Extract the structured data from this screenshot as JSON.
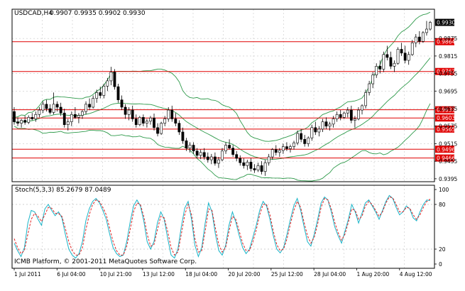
{
  "colors": {
    "background": "#ffffff",
    "grid": "#c8c8c8",
    "bullCandle": "#ffffff",
    "bearCandle": "#000000",
    "candleOutline": "#000000",
    "bollinger": "#2e9a4a",
    "levelLine": "#e00000",
    "stochMain": "#18b4c8",
    "stochSignal": "#e02020",
    "priceTag": "#000000",
    "levelTag": "#e00000"
  },
  "main_header": {
    "symbol_timeframe": "USDCAD,H4",
    "ohlc": "0.9907 0.9935 0.9902 0.9930"
  },
  "current_price_tag": "0.9930",
  "price_axis": {
    "min": 0.9385,
    "max": 0.9975,
    "ticks": [
      "0.9875",
      "0.9815",
      "0.9755",
      "0.9695",
      "0.9635",
      "0.9575",
      "0.9515",
      "0.9455",
      "0.9395"
    ]
  },
  "levels": [
    {
      "label": "0.9864",
      "value": 0.9864
    },
    {
      "label": "0.9762",
      "value": 0.9762
    },
    {
      "label": "0.9631",
      "value": 0.9631
    },
    {
      "label": "0.9603",
      "value": 0.9603
    },
    {
      "label": "0.9565",
      "value": 0.9565
    },
    {
      "label": "0.9496",
      "value": 0.9496
    },
    {
      "label": "0.9466",
      "value": 0.9466
    }
  ],
  "time_axis": {
    "labels": [
      "1 Jul 2011",
      "6 Jul 04:00",
      "10 Jul 21:00",
      "13 Jul 12:00",
      "18 Jul 04:00",
      "20 Jul 20:00",
      "25 Jul 12:00",
      "28 Jul 04:00",
      "1 Aug 20:00",
      "4 Aug 12:00"
    ]
  },
  "stoch": {
    "label": "Stoch(5,3,3) 85.2679 87.0489",
    "ticks": [
      "100",
      "80",
      "20",
      "0"
    ],
    "main": [
      28,
      18,
      10,
      22,
      55,
      72,
      70,
      60,
      52,
      74,
      80,
      72,
      65,
      70,
      62,
      40,
      20,
      12,
      8,
      14,
      30,
      58,
      74,
      84,
      88,
      82,
      72,
      60,
      40,
      22,
      14,
      10,
      12,
      30,
      56,
      78,
      86,
      78,
      58,
      30,
      20,
      30,
      55,
      70,
      60,
      35,
      12,
      8,
      20,
      50,
      75,
      84,
      60,
      25,
      10,
      22,
      55,
      82,
      70,
      40,
      18,
      12,
      25,
      52,
      70,
      56,
      38,
      22,
      14,
      20,
      36,
      52,
      72,
      84,
      78,
      60,
      38,
      20,
      15,
      22,
      40,
      60,
      78,
      88,
      72,
      50,
      30,
      24,
      40,
      60,
      82,
      90,
      86,
      70,
      50,
      38,
      28,
      44,
      60,
      80,
      70,
      55,
      68,
      82,
      86,
      78,
      70,
      60,
      72,
      84,
      92,
      88,
      76,
      66,
      70,
      78,
      74,
      62,
      58,
      70,
      80,
      86,
      85
    ],
    "signal": [
      34,
      22,
      14,
      18,
      40,
      60,
      68,
      64,
      57,
      66,
      76,
      75,
      68,
      68,
      64,
      48,
      30,
      18,
      12,
      12,
      22,
      46,
      66,
      80,
      86,
      84,
      76,
      66,
      48,
      30,
      18,
      12,
      12,
      24,
      46,
      70,
      82,
      80,
      64,
      40,
      24,
      26,
      46,
      64,
      62,
      44,
      22,
      12,
      16,
      40,
      66,
      80,
      66,
      34,
      16,
      18,
      44,
      74,
      72,
      48,
      26,
      16,
      22,
      44,
      64,
      60,
      44,
      28,
      18,
      18,
      30,
      46,
      66,
      80,
      80,
      66,
      44,
      26,
      18,
      20,
      34,
      54,
      72,
      84,
      76,
      56,
      38,
      28,
      36,
      54,
      76,
      88,
      86,
      74,
      56,
      42,
      32,
      40,
      56,
      74,
      72,
      60,
      64,
      78,
      84,
      80,
      72,
      64,
      70,
      82,
      90,
      89,
      80,
      70,
      70,
      76,
      75,
      66,
      60,
      66,
      76,
      84,
      87
    ]
  },
  "chart_data": {
    "type": "candlestick",
    "title": "USDCAD,H4",
    "candles": [
      [
        0.9625,
        0.964,
        0.958,
        0.959
      ],
      [
        0.959,
        0.9605,
        0.9575,
        0.9585
      ],
      [
        0.9585,
        0.96,
        0.957,
        0.9595
      ],
      [
        0.9595,
        0.961,
        0.958,
        0.9588
      ],
      [
        0.9588,
        0.9612,
        0.9582,
        0.9605
      ],
      [
        0.9605,
        0.962,
        0.9595,
        0.96
      ],
      [
        0.96,
        0.9625,
        0.959,
        0.9615
      ],
      [
        0.9615,
        0.964,
        0.9605,
        0.963
      ],
      [
        0.963,
        0.966,
        0.962,
        0.965
      ],
      [
        0.965,
        0.9665,
        0.9625,
        0.9635
      ],
      [
        0.9635,
        0.965,
        0.9615,
        0.9622
      ],
      [
        0.9622,
        0.969,
        0.9615,
        0.965
      ],
      [
        0.965,
        0.966,
        0.9625,
        0.964
      ],
      [
        0.964,
        0.9655,
        0.961,
        0.962
      ],
      [
        0.962,
        0.9635,
        0.957,
        0.958
      ],
      [
        0.958,
        0.96,
        0.956,
        0.959
      ],
      [
        0.959,
        0.9625,
        0.9575,
        0.9615
      ],
      [
        0.9615,
        0.964,
        0.96,
        0.9605
      ],
      [
        0.9605,
        0.962,
        0.9585,
        0.9612
      ],
      [
        0.9612,
        0.963,
        0.96,
        0.9625
      ],
      [
        0.9625,
        0.966,
        0.9615,
        0.965
      ],
      [
        0.965,
        0.967,
        0.963,
        0.964
      ],
      [
        0.964,
        0.968,
        0.9635,
        0.967
      ],
      [
        0.967,
        0.97,
        0.9655,
        0.969
      ],
      [
        0.969,
        0.971,
        0.967,
        0.968
      ],
      [
        0.968,
        0.972,
        0.967,
        0.9712
      ],
      [
        0.9712,
        0.974,
        0.9695,
        0.973
      ],
      [
        0.973,
        0.9778,
        0.9715,
        0.976
      ],
      [
        0.976,
        0.977,
        0.97,
        0.971
      ],
      [
        0.971,
        0.972,
        0.9655,
        0.9665
      ],
      [
        0.9665,
        0.968,
        0.963,
        0.964
      ],
      [
        0.964,
        0.965,
        0.96,
        0.9615
      ],
      [
        0.9615,
        0.964,
        0.9595,
        0.963
      ],
      [
        0.963,
        0.9645,
        0.959,
        0.96
      ],
      [
        0.96,
        0.9615,
        0.957,
        0.958
      ],
      [
        0.958,
        0.961,
        0.9575,
        0.9605
      ],
      [
        0.9605,
        0.9615,
        0.9575,
        0.9585
      ],
      [
        0.9585,
        0.96,
        0.957,
        0.9592
      ],
      [
        0.9592,
        0.961,
        0.958,
        0.9603
      ],
      [
        0.9603,
        0.9618,
        0.956,
        0.957
      ],
      [
        0.957,
        0.9585,
        0.954,
        0.955
      ],
      [
        0.955,
        0.959,
        0.9545,
        0.9585
      ],
      [
        0.9585,
        0.961,
        0.9575,
        0.96
      ],
      [
        0.96,
        0.964,
        0.959,
        0.963
      ],
      [
        0.963,
        0.9645,
        0.959,
        0.96
      ],
      [
        0.96,
        0.962,
        0.9575,
        0.9585
      ],
      [
        0.9585,
        0.9595,
        0.9545,
        0.9555
      ],
      [
        0.9555,
        0.957,
        0.9515,
        0.9525
      ],
      [
        0.9525,
        0.9535,
        0.949,
        0.95
      ],
      [
        0.95,
        0.952,
        0.9485,
        0.951
      ],
      [
        0.951,
        0.952,
        0.948,
        0.949
      ],
      [
        0.949,
        0.95,
        0.9465,
        0.9475
      ],
      [
        0.9475,
        0.9495,
        0.9462,
        0.9485
      ],
      [
        0.9485,
        0.95,
        0.946,
        0.947
      ],
      [
        0.947,
        0.9485,
        0.945,
        0.946
      ],
      [
        0.946,
        0.948,
        0.9445,
        0.947
      ],
      [
        0.947,
        0.9485,
        0.944,
        0.9448
      ],
      [
        0.9448,
        0.947,
        0.9432,
        0.946
      ],
      [
        0.946,
        0.95,
        0.9455,
        0.949
      ],
      [
        0.949,
        0.952,
        0.948,
        0.951
      ],
      [
        0.951,
        0.953,
        0.9495,
        0.95
      ],
      [
        0.95,
        0.951,
        0.947,
        0.9478
      ],
      [
        0.9478,
        0.949,
        0.9455,
        0.9465
      ],
      [
        0.9465,
        0.9475,
        0.944,
        0.945
      ],
      [
        0.945,
        0.9465,
        0.943,
        0.944
      ],
      [
        0.944,
        0.946,
        0.9425,
        0.9452
      ],
      [
        0.9452,
        0.9465,
        0.942,
        0.943
      ],
      [
        0.943,
        0.9445,
        0.9415,
        0.9425
      ],
      [
        0.9425,
        0.945,
        0.9418,
        0.944
      ],
      [
        0.944,
        0.9455,
        0.941,
        0.942
      ],
      [
        0.942,
        0.946,
        0.9405,
        0.945
      ],
      [
        0.945,
        0.948,
        0.944,
        0.947
      ],
      [
        0.947,
        0.95,
        0.946,
        0.9495
      ],
      [
        0.9495,
        0.951,
        0.9475,
        0.9485
      ],
      [
        0.9485,
        0.95,
        0.947,
        0.9492
      ],
      [
        0.9492,
        0.9515,
        0.948,
        0.9505
      ],
      [
        0.9505,
        0.952,
        0.949,
        0.9498
      ],
      [
        0.9498,
        0.9512,
        0.9485,
        0.9505
      ],
      [
        0.9505,
        0.9525,
        0.9495,
        0.9518
      ],
      [
        0.9518,
        0.956,
        0.951,
        0.955
      ],
      [
        0.955,
        0.9565,
        0.952,
        0.953
      ],
      [
        0.953,
        0.9545,
        0.9505,
        0.9515
      ],
      [
        0.9515,
        0.954,
        0.9505,
        0.9535
      ],
      [
        0.9535,
        0.958,
        0.9525,
        0.957
      ],
      [
        0.957,
        0.959,
        0.9545,
        0.9555
      ],
      [
        0.9555,
        0.9575,
        0.954,
        0.9565
      ],
      [
        0.9565,
        0.96,
        0.9555,
        0.959
      ],
      [
        0.959,
        0.9605,
        0.9565,
        0.9575
      ],
      [
        0.9575,
        0.959,
        0.956,
        0.9582
      ],
      [
        0.9582,
        0.961,
        0.957,
        0.96
      ],
      [
        0.96,
        0.9625,
        0.959,
        0.9615
      ],
      [
        0.9615,
        0.963,
        0.9595,
        0.9605
      ],
      [
        0.9605,
        0.9625,
        0.96,
        0.962
      ],
      [
        0.962,
        0.964,
        0.9605,
        0.963
      ],
      [
        0.963,
        0.9645,
        0.9585,
        0.9595
      ],
      [
        0.9595,
        0.961,
        0.957,
        0.96
      ],
      [
        0.96,
        0.964,
        0.9595,
        0.963
      ],
      [
        0.963,
        0.965,
        0.9615,
        0.9645
      ],
      [
        0.9645,
        0.97,
        0.9635,
        0.969
      ],
      [
        0.969,
        0.973,
        0.968,
        0.972
      ],
      [
        0.972,
        0.976,
        0.9705,
        0.975
      ],
      [
        0.975,
        0.979,
        0.974,
        0.978
      ],
      [
        0.978,
        0.98,
        0.9755,
        0.977
      ],
      [
        0.977,
        0.983,
        0.976,
        0.982
      ],
      [
        0.982,
        0.985,
        0.98,
        0.981
      ],
      [
        0.981,
        0.983,
        0.977,
        0.978
      ],
      [
        0.978,
        0.98,
        0.976,
        0.979
      ],
      [
        0.979,
        0.9845,
        0.9785,
        0.9838
      ],
      [
        0.9838,
        0.986,
        0.9815,
        0.9825
      ],
      [
        0.9825,
        0.985,
        0.979,
        0.98
      ],
      [
        0.98,
        0.983,
        0.9785,
        0.982
      ],
      [
        0.982,
        0.987,
        0.9815,
        0.986
      ],
      [
        0.986,
        0.989,
        0.9845,
        0.988
      ],
      [
        0.988,
        0.99,
        0.9855,
        0.9865
      ],
      [
        0.9865,
        0.99,
        0.986,
        0.9895
      ],
      [
        0.9895,
        0.9935,
        0.9885,
        0.9907
      ],
      [
        0.9907,
        0.9935,
        0.9902,
        0.993
      ]
    ]
  }
}
